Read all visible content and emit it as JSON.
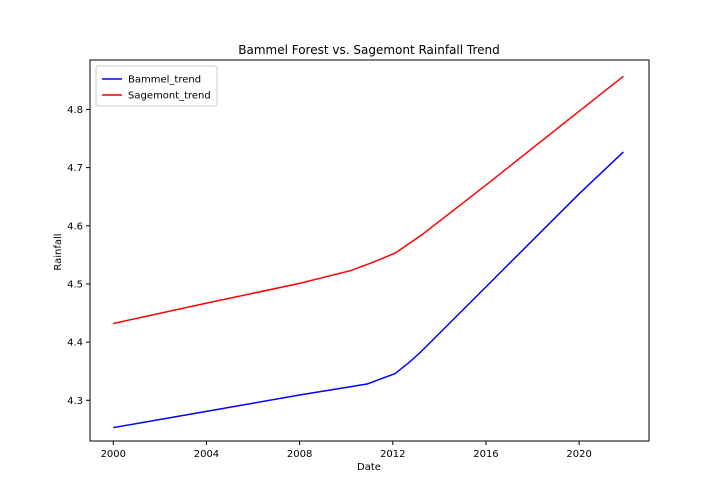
{
  "chart_data": {
    "type": "line",
    "title": "Bammel Forest vs. Sagemont Rainfall Trend",
    "xlabel": "Date",
    "ylabel": "Rainfall",
    "xlim": [
      1999.0,
      2023.0
    ],
    "ylim": [
      4.23,
      4.885
    ],
    "x_ticks": [
      2000,
      2004,
      2008,
      2012,
      2016,
      2020
    ],
    "y_ticks": [
      4.3,
      4.4,
      4.5,
      4.6,
      4.7,
      4.8
    ],
    "grid": false,
    "legend_position": "top-left",
    "series": [
      {
        "name": "Bammel_trend",
        "color": "#0000ff",
        "x": [
          2000.0,
          2004.0,
          2008.0,
          2010.9,
          2012.1,
          2012.7,
          2013.2,
          2016.0,
          2020.0,
          2021.9
        ],
        "y": [
          4.253,
          4.281,
          4.309,
          4.328,
          4.346,
          4.365,
          4.383,
          4.495,
          4.655,
          4.727
        ]
      },
      {
        "name": "Sagemont_trend",
        "color": "#ff0000",
        "x": [
          2000.0,
          2004.0,
          2008.0,
          2009.0,
          2010.2,
          2011.2,
          2012.1,
          2013.2,
          2016.0,
          2020.0,
          2021.9
        ],
        "y": [
          4.432,
          4.467,
          4.501,
          4.511,
          4.523,
          4.538,
          4.553,
          4.583,
          4.67,
          4.797,
          4.857
        ]
      }
    ]
  }
}
